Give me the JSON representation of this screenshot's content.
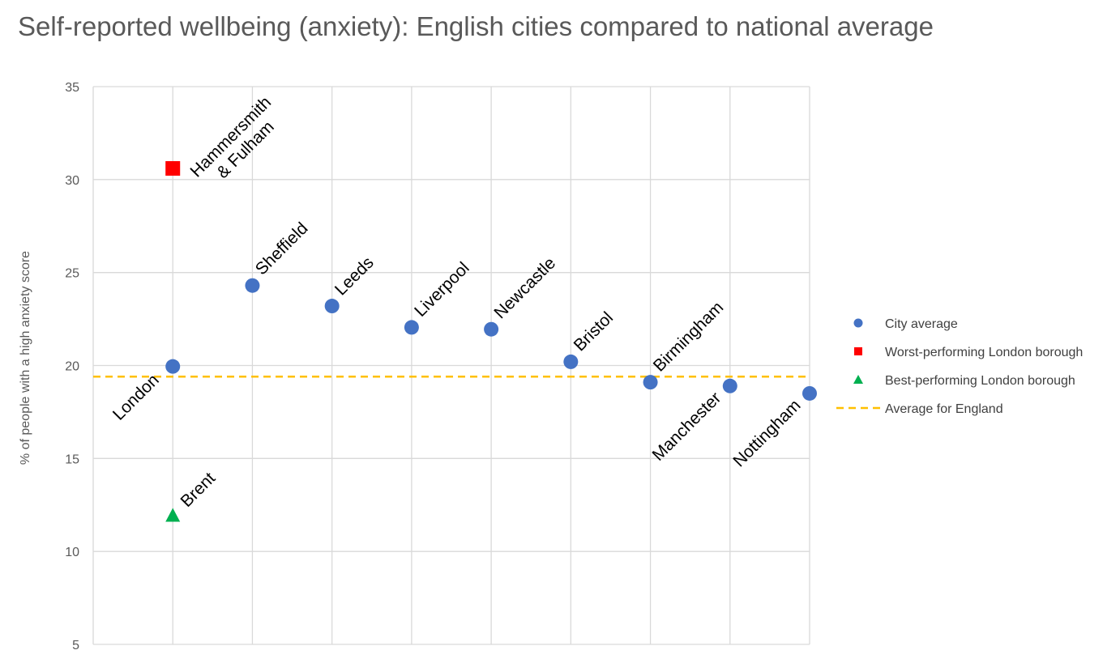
{
  "chart_data": {
    "type": "scatter",
    "title": "Self-reported wellbeing (anxiety): English cities compared to national average",
    "ylabel": "% of people with a high anxiety score",
    "xlabel": "",
    "ylim": [
      5,
      35
    ],
    "yticks": [
      5,
      10,
      15,
      20,
      25,
      30,
      35
    ],
    "grid": true,
    "legend_position": "right",
    "series": [
      {
        "name": "City average",
        "marker": "circle",
        "color": "#4472C4",
        "points": [
          {
            "label": "London",
            "x": 1,
            "y": 19.95
          },
          {
            "label": "Sheffield",
            "x": 2,
            "y": 24.3
          },
          {
            "label": "Leeds",
            "x": 3,
            "y": 23.2
          },
          {
            "label": "Liverpool",
            "x": 4,
            "y": 22.05
          },
          {
            "label": "Newcastle",
            "x": 5,
            "y": 21.95
          },
          {
            "label": "Bristol",
            "x": 6,
            "y": 20.2
          },
          {
            "label": "Birmingham",
            "x": 7,
            "y": 19.1
          },
          {
            "label": "Manchester",
            "x": 8,
            "y": 18.9
          },
          {
            "label": "Nottingham",
            "x": 9,
            "y": 18.5
          }
        ]
      },
      {
        "name": "Worst-performing London borough",
        "marker": "square",
        "color": "#FF0000",
        "points": [
          {
            "label": "Hammersmith & Fulham",
            "label_lines": [
              "Hammersmith",
              "& Fulham"
            ],
            "x": 1,
            "y": 30.6
          }
        ]
      },
      {
        "name": "Best-performing London borough",
        "marker": "triangle",
        "color": "#00B050",
        "points": [
          {
            "label": "Brent",
            "x": 1,
            "y": 11.9
          }
        ]
      },
      {
        "name": "Average for England",
        "marker": "dashed-line",
        "color": "#FFC000",
        "y": 19.4
      }
    ]
  }
}
